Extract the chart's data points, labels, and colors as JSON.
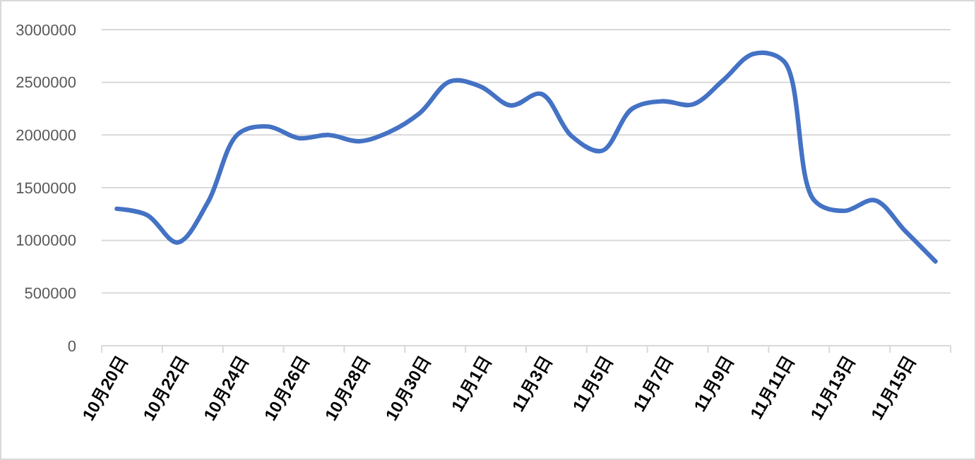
{
  "chart_data": {
    "type": "line",
    "categories": [
      "10月20日",
      null,
      "10月22日",
      null,
      "10月24日",
      null,
      "10月26日",
      null,
      "10月28日",
      null,
      "10月30日",
      null,
      "11月1日",
      null,
      "11月3日",
      null,
      "11月5日",
      null,
      "11月7日",
      null,
      "11月9日",
      null,
      "11月11日",
      null,
      "11月13日",
      null,
      "11月15日",
      null
    ],
    "series": [
      {
        "color": "#4472c4",
        "values": [
          1300000,
          1240000,
          980000,
          1360000,
          2010000,
          2080000,
          1970000,
          2000000,
          1940000,
          2030000,
          2210000,
          2510000,
          2460000,
          2280000,
          2390000,
          1990000,
          1850000,
          2250000,
          2320000,
          2290000,
          2520000,
          2770000,
          2700000,
          1380000,
          1280000,
          1380000,
          1090000,
          800000
        ]
      }
    ],
    "ylim": [
      0,
      3000000
    ],
    "yticks": [
      0,
      500000,
      1000000,
      1500000,
      2000000,
      2500000,
      3000000
    ],
    "grid": "y",
    "marker": "none",
    "line_style": "solid"
  }
}
